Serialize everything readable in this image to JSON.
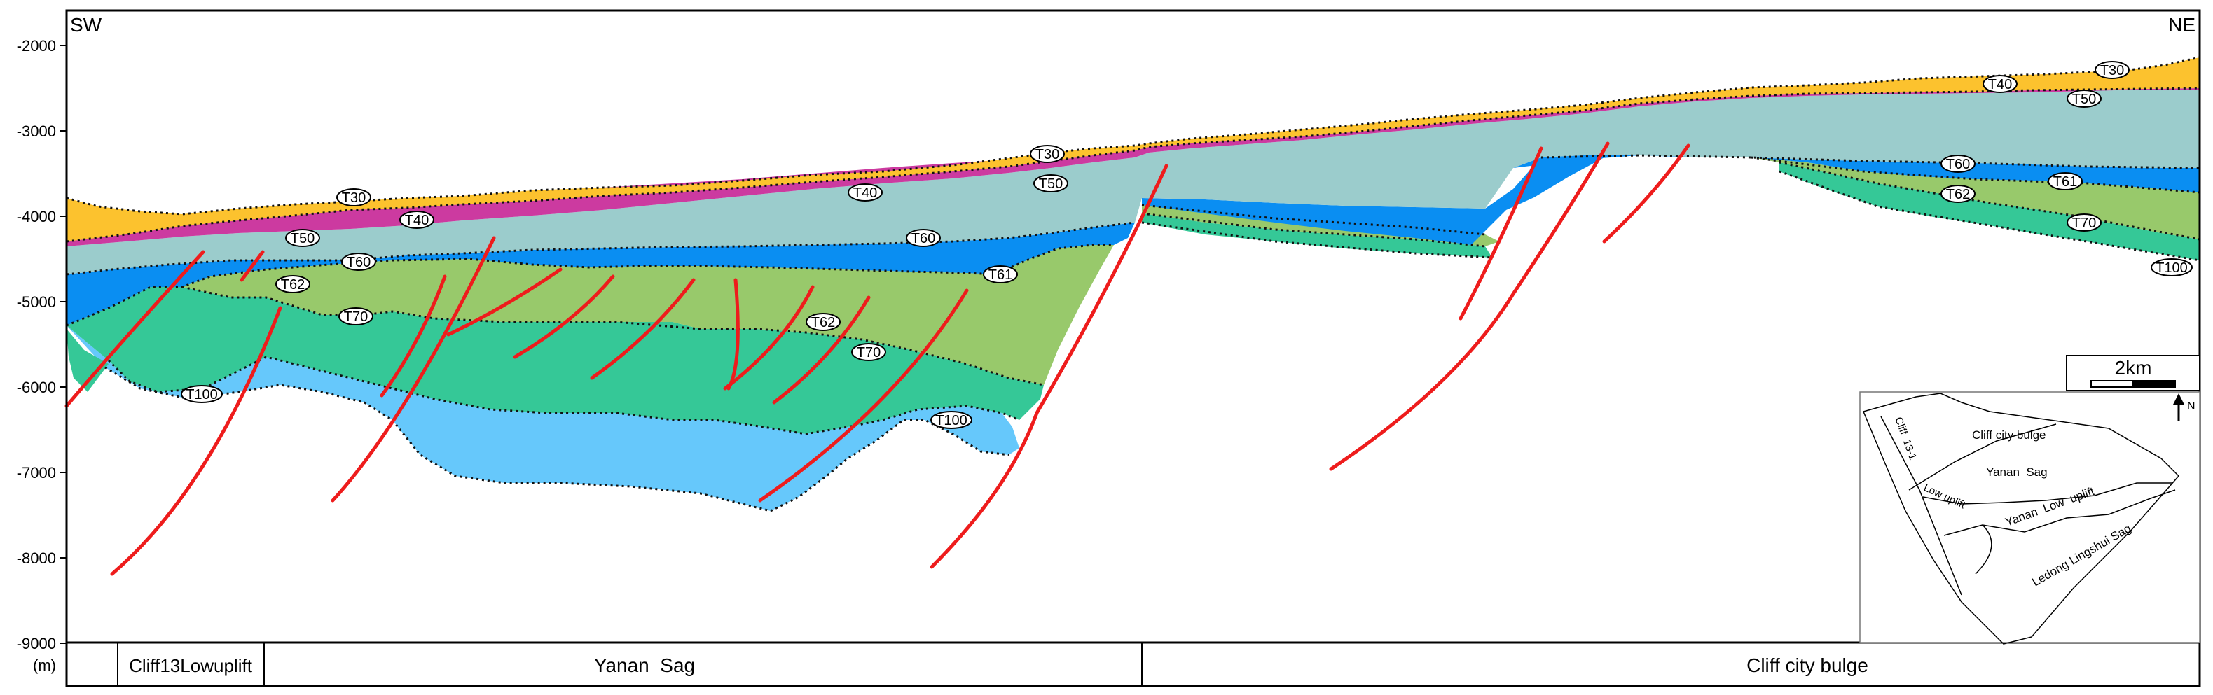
{
  "orientation": {
    "left": "SW",
    "right": "NE"
  },
  "depth_axis": {
    "unit_label": "(m)",
    "ticks": [
      "-2000",
      "-3000",
      "-4000",
      "-5000",
      "-6000",
      "-7000",
      "-8000",
      "-9000"
    ]
  },
  "colors": {
    "T30_T40": "#fcc22e",
    "T40_T50": "#cc3aa0",
    "T50_T60": "#9bcccc",
    "T60_T61": "#0a8ef2",
    "T61_T62": "#98c96b",
    "T62_T70": "#35c897",
    "T70_T100": "#66c8fb",
    "fault": "#ee1c1c"
  },
  "horizon_labels": [
    "T30",
    "T40",
    "T50",
    "T60",
    "T61",
    "T62",
    "T70",
    "T100"
  ],
  "units": {
    "cell1": "",
    "cell2": "Cliff13Lowuplift",
    "cell3": "Yanan  Sag",
    "cell4": "Cliff city bulge"
  },
  "scale_bar": {
    "label": "2km"
  },
  "north_arrow": {
    "label": "N"
  },
  "inset_map": {
    "labels": {
      "cliff_city_bulge": "Cliff city bulge",
      "yanan_sag": "Yanan  Sag",
      "yanan_low_uplift": "Yanan  Low  uplift",
      "ledong_lingshui_sag": "Ledong Lingshui Sag",
      "cliff_13_1": "Cliff  13-1",
      "low_uplift": "Low uplift"
    }
  }
}
